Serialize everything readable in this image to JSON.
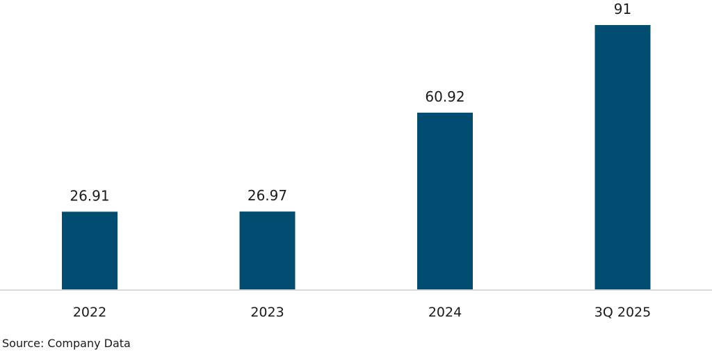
{
  "chart_data": {
    "type": "bar",
    "categories": [
      "2022",
      "2023",
      "2024",
      "3Q 2025"
    ],
    "values": [
      26.91,
      26.97,
      60.92,
      91
    ],
    "value_labels": [
      "26.91",
      "26.97",
      "60.92",
      "91"
    ],
    "title": "",
    "xlabel": "",
    "ylabel": "",
    "ylim": [
      0,
      91
    ],
    "grid": false,
    "legend": "none",
    "bar_color": "#004d71",
    "baseline_color": "#d9d9d9"
  },
  "footer": {
    "source": "Source: Company Data"
  }
}
